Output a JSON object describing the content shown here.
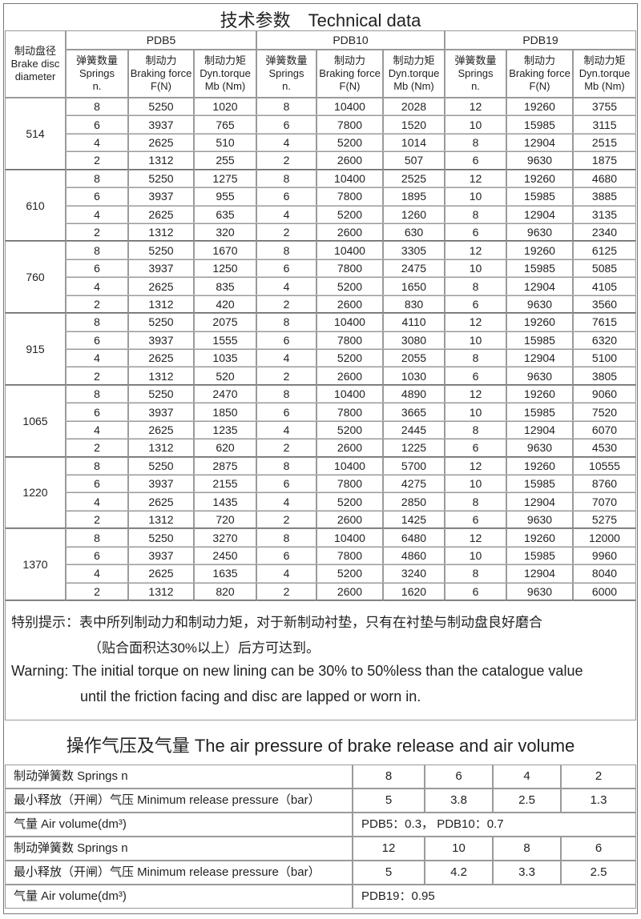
{
  "title": "技术参数　Technical data",
  "table": {
    "header": {
      "diameter": [
        "制动盘径",
        "Brake disc",
        "diameter"
      ],
      "models": [
        "PDB5",
        "PDB10",
        "PDB19"
      ],
      "columns": [
        [
          "弹簧数量",
          "Springs",
          "n."
        ],
        [
          "制动力",
          "Braking force",
          "F(N)"
        ],
        [
          "制动力矩",
          "Dyn.torque",
          "Mb (Nm)"
        ]
      ]
    },
    "groups": [
      {
        "diameter": 514,
        "rows": [
          [
            8,
            5250,
            1020,
            8,
            10400,
            2028,
            12,
            19260,
            3755
          ],
          [
            6,
            3937,
            765,
            6,
            7800,
            1520,
            10,
            15985,
            3115
          ],
          [
            4,
            2625,
            510,
            4,
            5200,
            1014,
            8,
            12904,
            2515
          ],
          [
            2,
            1312,
            255,
            2,
            2600,
            507,
            6,
            9630,
            1875
          ]
        ]
      },
      {
        "diameter": 610,
        "rows": [
          [
            8,
            5250,
            1275,
            8,
            10400,
            2525,
            12,
            19260,
            4680
          ],
          [
            6,
            3937,
            955,
            6,
            7800,
            1895,
            10,
            15985,
            3885
          ],
          [
            4,
            2625,
            635,
            4,
            5200,
            1260,
            8,
            12904,
            3135
          ],
          [
            2,
            1312,
            320,
            2,
            2600,
            630,
            6,
            9630,
            2340
          ]
        ]
      },
      {
        "diameter": 760,
        "rows": [
          [
            8,
            5250,
            1670,
            8,
            10400,
            3305,
            12,
            19260,
            6125
          ],
          [
            6,
            3937,
            1250,
            6,
            7800,
            2475,
            10,
            15985,
            5085
          ],
          [
            4,
            2625,
            835,
            4,
            5200,
            1650,
            8,
            12904,
            4105
          ],
          [
            2,
            1312,
            420,
            2,
            2600,
            830,
            6,
            9630,
            3560
          ]
        ]
      },
      {
        "diameter": 915,
        "rows": [
          [
            8,
            5250,
            2075,
            8,
            10400,
            4110,
            12,
            19260,
            7615
          ],
          [
            6,
            3937,
            1555,
            6,
            7800,
            3080,
            10,
            15985,
            6320
          ],
          [
            4,
            2625,
            1035,
            4,
            5200,
            2055,
            8,
            12904,
            5100
          ],
          [
            2,
            1312,
            520,
            2,
            2600,
            1030,
            6,
            9630,
            3805
          ]
        ]
      },
      {
        "diameter": 1065,
        "rows": [
          [
            8,
            5250,
            2470,
            8,
            10400,
            4890,
            12,
            19260,
            9060
          ],
          [
            6,
            3937,
            1850,
            6,
            7800,
            3665,
            10,
            15985,
            7520
          ],
          [
            4,
            2625,
            1235,
            4,
            5200,
            2445,
            8,
            12904,
            6070
          ],
          [
            2,
            1312,
            620,
            2,
            2600,
            1225,
            6,
            9630,
            4530
          ]
        ]
      },
      {
        "diameter": 1220,
        "rows": [
          [
            8,
            5250,
            2875,
            8,
            10400,
            5700,
            12,
            19260,
            10555
          ],
          [
            6,
            3937,
            2155,
            6,
            7800,
            4275,
            10,
            15985,
            8760
          ],
          [
            4,
            2625,
            1435,
            4,
            5200,
            2850,
            8,
            12904,
            7070
          ],
          [
            2,
            1312,
            720,
            2,
            2600,
            1425,
            6,
            9630,
            5275
          ]
        ]
      },
      {
        "diameter": 1370,
        "rows": [
          [
            8,
            5250,
            3270,
            8,
            10400,
            6480,
            12,
            19260,
            12000
          ],
          [
            6,
            3937,
            2450,
            6,
            7800,
            4860,
            10,
            15985,
            9960
          ],
          [
            4,
            2625,
            1635,
            4,
            5200,
            3240,
            8,
            12904,
            8040
          ],
          [
            2,
            1312,
            820,
            2,
            2600,
            1620,
            6,
            9630,
            6000
          ]
        ]
      }
    ]
  },
  "notes": {
    "cn": [
      "特别提示：表中所列制动力和制动力矩，对于新制动衬垫，只有在衬垫与制动盘良好磨合",
      "（贴合面积达30%以上）后方可达到。"
    ],
    "en": [
      "Warning: The initial torque on new lining can be 30% to 50%less than the catalogue value",
      "until the friction facing and disc are lapped or worn in."
    ]
  },
  "air": {
    "title": "操作气压及气量 The air pressure of brake release and air volume",
    "rows": [
      {
        "label": "制动弹簧数 Springs n",
        "values": [
          8,
          6,
          4,
          2
        ]
      },
      {
        "label": "最小释放（开闸）气压 Minimum release pressure（bar）",
        "values": [
          5,
          3.8,
          2.5,
          1.3
        ]
      },
      {
        "label": "气量 Air volume(dm³)",
        "text": "PDB5：0.3，  PDB10：0.7"
      },
      {
        "label": "制动弹簧数 Springs n",
        "values": [
          12,
          10,
          8,
          6
        ]
      },
      {
        "label": "最小释放（开闸）气压 Minimum release pressure（bar）",
        "values": [
          5,
          4.2,
          3.3,
          2.5
        ]
      },
      {
        "label": "气量 Air volume(dm³)",
        "text": "PDB19：0.95"
      }
    ]
  }
}
